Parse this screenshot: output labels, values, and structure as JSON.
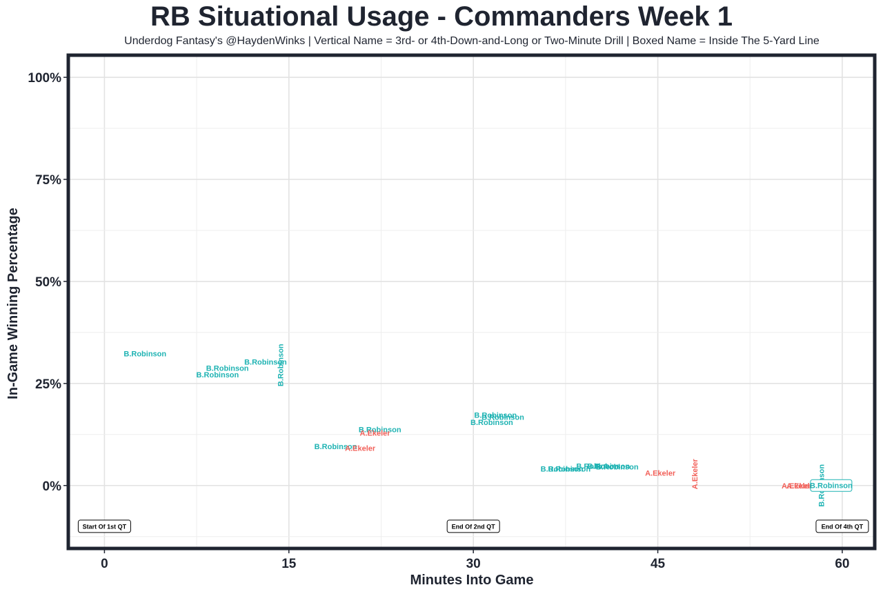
{
  "chart_data": {
    "type": "scatter",
    "title": "RB Situational Usage - Commanders Week 1",
    "subtitle": "Underdog Fantasy's @HaydenWinks | Vertical Name = 3rd- or 4th-Down-and-Long or Two-Minute Drill | Boxed Name = Inside The 5-Yard Line",
    "xlabel": "Minutes Into Game",
    "ylabel": "In-Game Winning Percentage",
    "xlim": [
      -2.8,
      62.5
    ],
    "ylim": [
      -15,
      105
    ],
    "x_ticks": [
      0,
      15,
      30,
      45,
      60
    ],
    "x_tick_labels": [
      "0",
      "15",
      "30",
      "45",
      "60"
    ],
    "y_ticks": [
      0,
      25,
      50,
      75,
      100
    ],
    "y_tick_labels": [
      "0%",
      "25%",
      "50%",
      "75%",
      "100%"
    ],
    "grid": true,
    "colors": {
      "B.Robinson": "#1fb3b3",
      "A.Ekeler": "#f2615a"
    },
    "points": [
      {
        "player": "B.Robinson",
        "x": 3.3,
        "y": 32.3,
        "style": "normal"
      },
      {
        "player": "B.Robinson",
        "x": 10.0,
        "y": 28.8,
        "style": "normal"
      },
      {
        "player": "B.Robinson",
        "x": 9.2,
        "y": 27.2,
        "style": "normal"
      },
      {
        "player": "B.Robinson",
        "x": 13.1,
        "y": 30.3,
        "style": "normal"
      },
      {
        "player": "B.Robinson",
        "x": 14.3,
        "y": 29.5,
        "style": "vertical"
      },
      {
        "player": "B.Robinson",
        "x": 18.8,
        "y": 9.6,
        "style": "normal"
      },
      {
        "player": "A.Ekeler",
        "x": 20.8,
        "y": 9.2,
        "style": "normal"
      },
      {
        "player": "B.Robinson",
        "x": 22.4,
        "y": 13.7,
        "style": "normal"
      },
      {
        "player": "A.Ekeler",
        "x": 22.0,
        "y": 12.9,
        "style": "normal"
      },
      {
        "player": "B.Robinson",
        "x": 31.8,
        "y": 17.3,
        "style": "normal"
      },
      {
        "player": "B.Robinson",
        "x": 32.4,
        "y": 16.8,
        "style": "normal"
      },
      {
        "player": "B.Robinson",
        "x": 31.5,
        "y": 15.5,
        "style": "normal"
      },
      {
        "player": "B.Robinson",
        "x": 37.2,
        "y": 4.1,
        "style": "normal"
      },
      {
        "player": "B.Robinson",
        "x": 37.8,
        "y": 4.1,
        "style": "normal"
      },
      {
        "player": "B.Robinson",
        "x": 40.1,
        "y": 4.8,
        "style": "normal"
      },
      {
        "player": "B.Robinson",
        "x": 41.0,
        "y": 4.8,
        "style": "normal"
      },
      {
        "player": "B.Robinson",
        "x": 41.7,
        "y": 4.6,
        "style": "normal"
      },
      {
        "player": "A.Ekeler",
        "x": 45.2,
        "y": 3.1,
        "style": "normal"
      },
      {
        "player": "A.Ekeler",
        "x": 48.0,
        "y": 2.8,
        "style": "vertical"
      },
      {
        "player": "A.Ekeler",
        "x": 56.3,
        "y": 0.0,
        "style": "normal"
      },
      {
        "player": "A.Ekeler",
        "x": 56.7,
        "y": 0.0,
        "style": "normal"
      },
      {
        "player": "B.Robinson",
        "x": 58.3,
        "y": 0.0,
        "style": "vertical"
      },
      {
        "player": "B.Robinson",
        "x": 59.1,
        "y": 0.0,
        "style": "boxed"
      }
    ],
    "quarter_markers": [
      {
        "label": "Start Of 1st QT",
        "x": 0,
        "y": -10
      },
      {
        "label": "End Of 2nd QT",
        "x": 30,
        "y": -10
      },
      {
        "label": "End Of 4th QT",
        "x": 60,
        "y": -10
      }
    ]
  }
}
